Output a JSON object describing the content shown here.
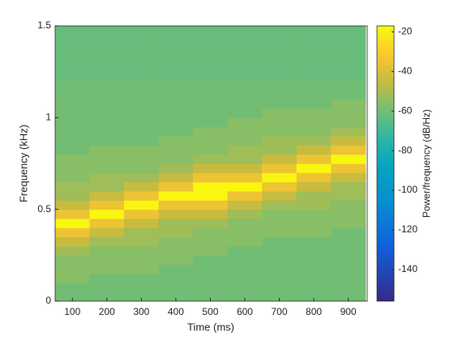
{
  "chart_data": {
    "type": "heatmap",
    "xlabel": "Time (ms)",
    "ylabel": "Frequency (kHz)",
    "colorbar_label": "Power/frequency (dB/Hz)",
    "colormap": "parula",
    "x": [
      100,
      200,
      300,
      400,
      500,
      600,
      700,
      800,
      900
    ],
    "y": [
      0.025,
      0.075,
      0.125,
      0.175,
      0.225,
      0.275,
      0.325,
      0.375,
      0.425,
      0.475,
      0.525,
      0.575,
      0.625,
      0.675,
      0.725,
      0.775,
      0.825,
      0.875,
      0.925,
      0.975,
      1.025,
      1.075,
      1.125,
      1.175,
      1.225,
      1.275,
      1.325,
      1.375,
      1.425,
      1.475
    ],
    "z": [
      [
        -60,
        -60,
        -56,
        -56,
        -56,
        -52,
        -45,
        -35,
        -18,
        -35,
        -45,
        -52,
        -52,
        -56,
        -56,
        -56,
        -60,
        -60,
        -60,
        -60,
        -60,
        -60,
        -60,
        -60,
        -62,
        -62,
        -62,
        -62,
        -62,
        -62
      ],
      [
        -60,
        -60,
        -60,
        -56,
        -56,
        -56,
        -52,
        -45,
        -35,
        -18,
        -35,
        -45,
        -52,
        -52,
        -56,
        -56,
        -56,
        -60,
        -60,
        -60,
        -60,
        -60,
        -60,
        -60,
        -62,
        -62,
        -62,
        -62,
        -62,
        -62
      ],
      [
        -60,
        -60,
        -60,
        -56,
        -56,
        -56,
        -52,
        -52,
        -45,
        -35,
        -18,
        -35,
        -45,
        -52,
        -56,
        -56,
        -56,
        -60,
        -60,
        -60,
        -60,
        -60,
        -60,
        -60,
        -62,
        -62,
        -62,
        -62,
        -62,
        -62
      ],
      [
        -60,
        -60,
        -60,
        -60,
        -56,
        -56,
        -56,
        -52,
        -52,
        -45,
        -35,
        -18,
        -35,
        -45,
        -52,
        -56,
        -56,
        -56,
        -60,
        -60,
        -60,
        -60,
        -60,
        -60,
        -62,
        -62,
        -62,
        -62,
        -62,
        -62
      ],
      [
        -60,
        -60,
        -60,
        -60,
        -60,
        -56,
        -56,
        -56,
        -52,
        -45,
        -35,
        -18,
        -18,
        -35,
        -45,
        -52,
        -56,
        -56,
        -56,
        -60,
        -60,
        -60,
        -60,
        -60,
        -62,
        -62,
        -62,
        -62,
        -62,
        -62
      ],
      [
        -60,
        -60,
        -60,
        -60,
        -60,
        -60,
        -56,
        -56,
        -56,
        -52,
        -45,
        -35,
        -18,
        -35,
        -45,
        -52,
        -52,
        -56,
        -56,
        -56,
        -60,
        -60,
        -60,
        -60,
        -62,
        -62,
        -62,
        -62,
        -62,
        -62
      ],
      [
        -60,
        -60,
        -60,
        -60,
        -60,
        -60,
        -60,
        -56,
        -56,
        -56,
        -52,
        -45,
        -35,
        -18,
        -35,
        -45,
        -52,
        -52,
        -56,
        -56,
        -56,
        -60,
        -60,
        -60,
        -62,
        -62,
        -62,
        -62,
        -62,
        -62
      ],
      [
        -60,
        -60,
        -60,
        -60,
        -60,
        -60,
        -60,
        -56,
        -56,
        -56,
        -52,
        -52,
        -45,
        -35,
        -18,
        -35,
        -45,
        -52,
        -56,
        -56,
        -56,
        -60,
        -60,
        -60,
        -62,
        -62,
        -62,
        -62,
        -62,
        -62
      ],
      [
        -60,
        -60,
        -60,
        -60,
        -60,
        -60,
        -60,
        -60,
        -56,
        -56,
        -56,
        -52,
        -52,
        -45,
        -35,
        -18,
        -35,
        -45,
        -52,
        -56,
        -56,
        -56,
        -60,
        -60,
        -62,
        -62,
        -62,
        -62,
        -62,
        -62
      ]
    ],
    "xlim": [
      50,
      955
    ],
    "xticks": [
      100,
      200,
      300,
      400,
      500,
      600,
      700,
      800,
      900
    ],
    "ylim": [
      0,
      1.5
    ],
    "yticks": [
      0,
      0.5,
      1,
      1.5
    ],
    "clim": [
      -156,
      -17
    ],
    "cticks": [
      -140,
      -120,
      -100,
      -80,
      -60,
      -40,
      -20
    ]
  }
}
